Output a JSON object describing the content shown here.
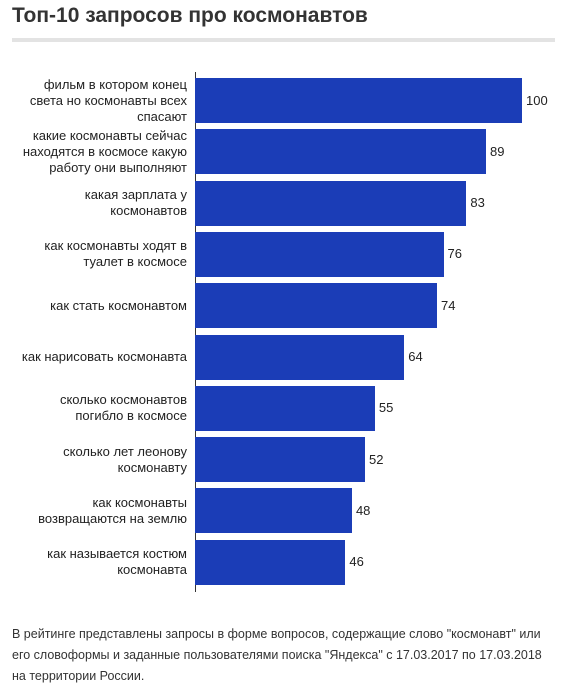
{
  "chart_data": {
    "type": "bar",
    "orientation": "horizontal",
    "title": "Топ-10 запросов про космонавтов",
    "categories": [
      "фильм в котором конец света но космонавты всех спасают",
      "какие космонавты сейчас находятся в космосе какую работу они выполняют",
      "какая зарплата у космонавтов",
      "как космонавты ходят в туалет в космосе",
      "как стать космонавтом",
      "как нарисовать космонавта",
      "сколько космонавтов погибло в космосе",
      "сколько лет леонову космонавту",
      "как космонавты возвращаются на землю",
      "как называется костюм космонавта"
    ],
    "values": [
      100,
      89,
      83,
      76,
      74,
      64,
      55,
      52,
      48,
      46
    ],
    "color": "#1b3db7",
    "xlim": [
      0,
      100
    ],
    "note": "В рейтинге представлены запросы в форме вопросов, содержащие слово \"космонавт\" или его словоформы и заданные пользователями поиска \"Яндекса\" с 17.03.2017 по 17.03.2018 на территории России."
  }
}
